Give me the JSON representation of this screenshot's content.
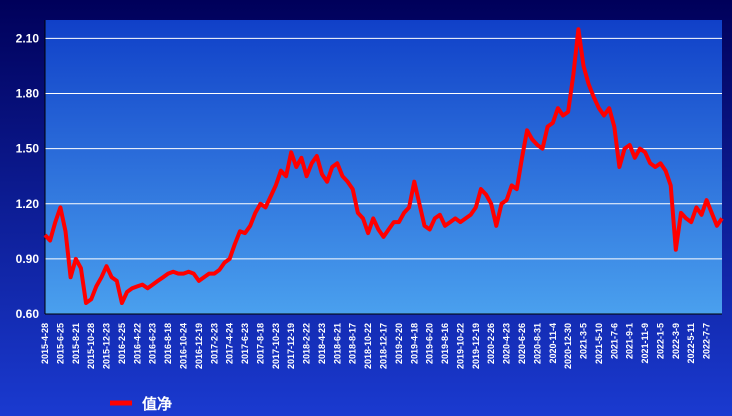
{
  "chart_data": {
    "type": "line",
    "categories": [
      "2015-4-28",
      null,
      null,
      "2015-6-25",
      null,
      null,
      "2015-8-21",
      null,
      null,
      "2015-10-28",
      null,
      null,
      "2015-12-23",
      null,
      null,
      "2016-2-25",
      null,
      null,
      "2016-4-22",
      null,
      null,
      "2016-6-23",
      null,
      null,
      "2016-8-18",
      null,
      null,
      "2016-10-24",
      null,
      null,
      "2016-12-19",
      null,
      null,
      "2017-2-23",
      null,
      null,
      "2017-4-24",
      null,
      null,
      "2017-6-23",
      null,
      null,
      "2017-8-18",
      null,
      null,
      "2017-10-23",
      null,
      null,
      "2017-12-19",
      null,
      null,
      "2018-2-22",
      null,
      null,
      "2018-4-23",
      null,
      null,
      "2018-6-21",
      null,
      null,
      "2018-8-17",
      null,
      null,
      "2018-10-22",
      null,
      null,
      "2018-12-17",
      null,
      null,
      "2019-2-20",
      null,
      null,
      "2019-4-18",
      null,
      null,
      "2019-6-20",
      null,
      null,
      "2019-8-16",
      null,
      null,
      "2019-10-22",
      null,
      null,
      "2019-12-19",
      null,
      null,
      "2020-2-26",
      null,
      null,
      "2020-4-23",
      null,
      null,
      "2020-6-26",
      null,
      null,
      "2020-8-31",
      null,
      null,
      "2020-11-4",
      null,
      null,
      "2020-12-30",
      null,
      null,
      "2021-3-5",
      null,
      null,
      "2021-5-10",
      null,
      null,
      "2021-7-6",
      null,
      null,
      "2021-9-1",
      null,
      null,
      "2021-11-9",
      null,
      null,
      "2022-1-5",
      null,
      null,
      "2022-3-9",
      null,
      null,
      "2022-5-11",
      null,
      null,
      "2022-7-7",
      null,
      null,
      null
    ],
    "series": [
      {
        "name": "值净",
        "color": "#ff0000",
        "values": [
          1.03,
          1.0,
          1.1,
          1.18,
          1.05,
          0.8,
          0.9,
          0.85,
          0.66,
          0.68,
          0.75,
          0.8,
          0.86,
          0.8,
          0.78,
          0.66,
          0.72,
          0.74,
          0.75,
          0.76,
          0.74,
          0.76,
          0.78,
          0.8,
          0.82,
          0.83,
          0.82,
          0.82,
          0.83,
          0.82,
          0.78,
          0.8,
          0.82,
          0.82,
          0.84,
          0.88,
          0.9,
          0.98,
          1.05,
          1.04,
          1.08,
          1.15,
          1.2,
          1.18,
          1.24,
          1.3,
          1.38,
          1.35,
          1.48,
          1.4,
          1.45,
          1.35,
          1.42,
          1.46,
          1.36,
          1.32,
          1.4,
          1.42,
          1.35,
          1.32,
          1.28,
          1.15,
          1.12,
          1.04,
          1.12,
          1.06,
          1.02,
          1.06,
          1.1,
          1.1,
          1.15,
          1.18,
          1.32,
          1.2,
          1.08,
          1.06,
          1.12,
          1.14,
          1.08,
          1.1,
          1.12,
          1.1,
          1.12,
          1.14,
          1.18,
          1.28,
          1.25,
          1.2,
          1.08,
          1.2,
          1.22,
          1.3,
          1.28,
          1.45,
          1.6,
          1.55,
          1.52,
          1.5,
          1.62,
          1.64,
          1.72,
          1.68,
          1.7,
          1.9,
          2.15,
          1.95,
          1.85,
          1.78,
          1.72,
          1.68,
          1.72,
          1.62,
          1.4,
          1.5,
          1.52,
          1.45,
          1.5,
          1.48,
          1.42,
          1.4,
          1.42,
          1.38,
          1.3,
          0.95,
          1.15,
          1.12,
          1.1,
          1.18,
          1.14,
          1.22,
          1.15,
          1.08,
          1.12
        ]
      }
    ],
    "ylim": [
      0.6,
      2.2
    ],
    "yticks": [
      {
        "value": 0.6,
        "label": "0.60"
      },
      {
        "value": 0.9,
        "label": "0.90"
      },
      {
        "value": 1.2,
        "label": "1.20"
      },
      {
        "value": 1.5,
        "label": "1.50"
      },
      {
        "value": 1.8,
        "label": "1.80"
      },
      {
        "value": 2.1,
        "label": "2.10"
      }
    ],
    "grid": true
  }
}
